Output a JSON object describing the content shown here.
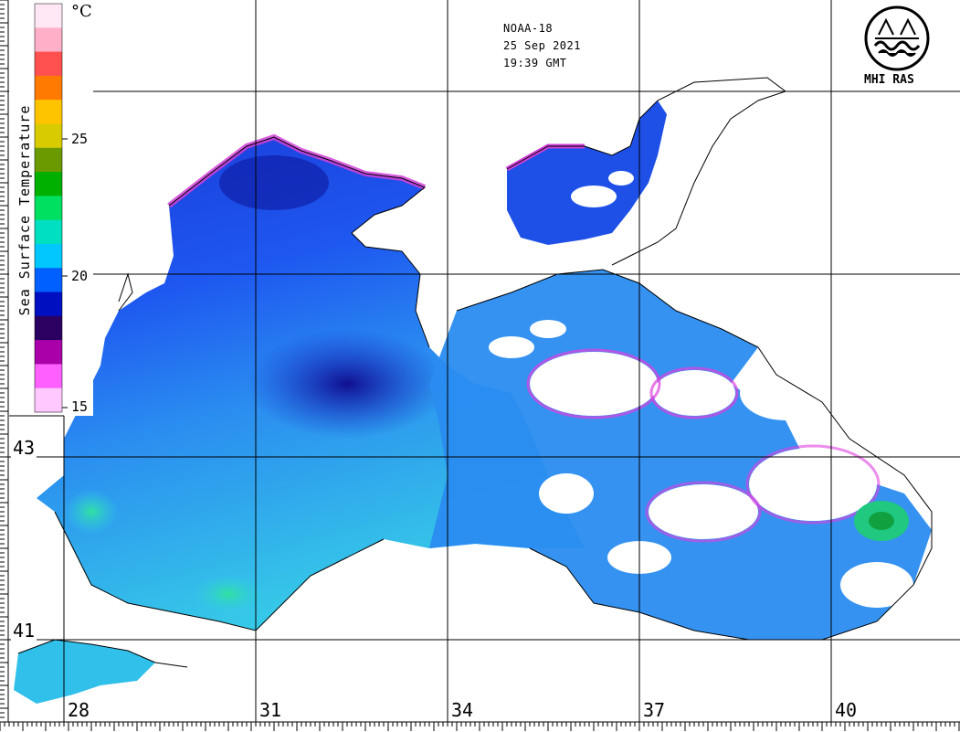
{
  "header": {
    "satellite": "NOAA-18",
    "date": "25 Sep 2021",
    "time": "19:39 GMT"
  },
  "logo": {
    "text": "MHI RAS"
  },
  "colorbar": {
    "title": "Sea Surface Temperature",
    "unit": "°C",
    "ticks": [
      "25",
      "20",
      "15"
    ],
    "colors": [
      "#ffe8f4",
      "#ffb0c8",
      "#ff5050",
      "#ff7a00",
      "#ffc400",
      "#d8cc00",
      "#6a9a00",
      "#00b000",
      "#00e060",
      "#00e0c0",
      "#00c8ff",
      "#0060ff",
      "#0010c0",
      "#2a0060",
      "#aa00aa",
      "#ff60ff",
      "#ffc8ff"
    ]
  },
  "longitudes": [
    "28",
    "31",
    "34",
    "37",
    "40"
  ],
  "latitudes": [
    "43",
    "41"
  ],
  "colors": {
    "sst_warm": "#30d0e8",
    "sst_mid": "#2a7cff",
    "sst_cool": "#1a2fd0",
    "sst_cold": "#0a0a80",
    "cloud_edge": "#e040e0",
    "coast": "#000000"
  }
}
